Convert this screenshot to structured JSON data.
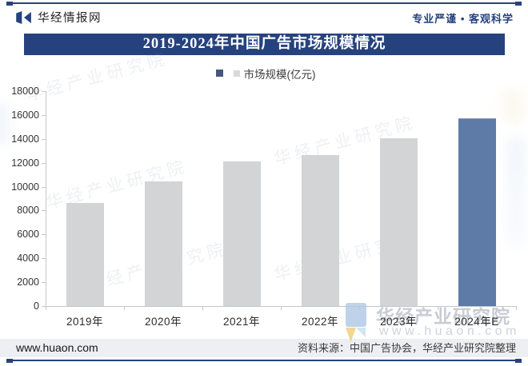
{
  "header": {
    "brand": "华经情报网",
    "slogan": "专业严谨 • 客观科学"
  },
  "title": "2019-2024年中国广告市场规模情况",
  "legend": {
    "label": "市场规模(亿元)"
  },
  "chart_data": {
    "type": "bar",
    "categories": [
      "2019年",
      "2020年",
      "2021年",
      "2022年",
      "2023年",
      "2024年E"
    ],
    "values": [
      8630,
      10440,
      12110,
      12650,
      14050,
      15720
    ],
    "title": "2019-2024年中国广告市场规模情况",
    "xlabel": "",
    "ylabel": "市场规模(亿元)",
    "ylim": [
      0,
      18000
    ],
    "ytick_step": 2000,
    "grid": false,
    "legend_position": "top-center",
    "bar_color": "#d3d4d6",
    "highlight_index": 5,
    "highlight_color": "#5e7ba8"
  },
  "footer": {
    "site": "www.huaon.com",
    "source": "资料来源：中国广告协会，华经产业研究院整理"
  },
  "watermark": {
    "research": "华经产业研究院",
    "site": "www.huaon.com"
  },
  "colors": {
    "navy": "#26427e",
    "bar_gray": "#d3d4d6",
    "bar_blue": "#5e7ba8"
  }
}
